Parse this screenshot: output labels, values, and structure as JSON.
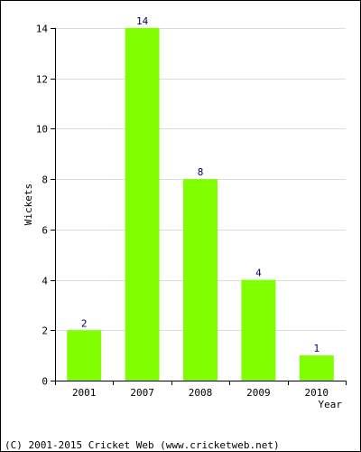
{
  "chart_data": {
    "type": "bar",
    "categories": [
      "2001",
      "2007",
      "2008",
      "2009",
      "2010"
    ],
    "values": [
      2,
      14,
      8,
      4,
      1
    ],
    "data_labels": [
      "2",
      "14",
      "8",
      "4",
      "1"
    ],
    "title": "",
    "xlabel": "Year",
    "ylabel": "Wickets",
    "ylim": [
      0,
      14
    ],
    "yticks": [
      0,
      2,
      4,
      6,
      8,
      10,
      12,
      14
    ],
    "grid": true,
    "legend": "none",
    "bar_color": "#80ff00",
    "label_color": "#000066"
  },
  "footer": {
    "copyright": "(C) 2001-2015 Cricket Web (www.cricketweb.net)"
  }
}
